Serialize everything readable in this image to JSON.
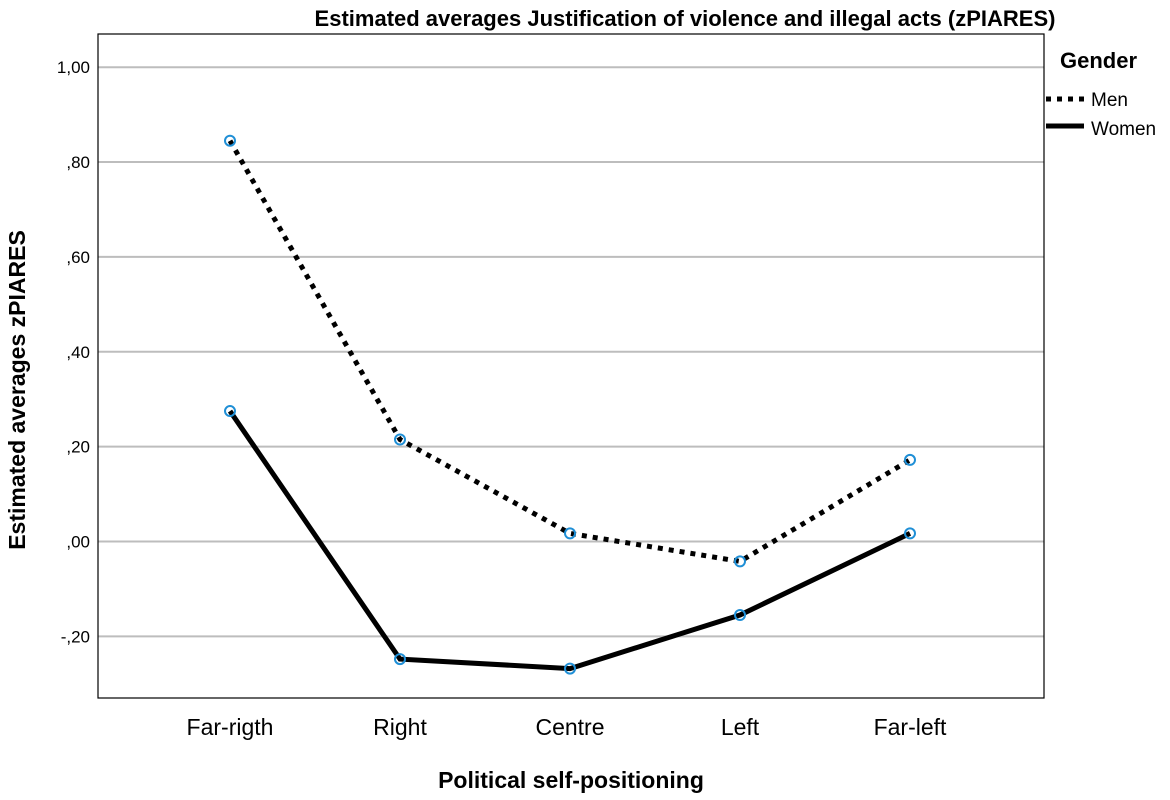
{
  "chart_data": {
    "type": "line",
    "title": "Estimated averages Justification of violence and illegal acts (zPIARES)",
    "xlabel": "Political self-positioning",
    "ylabel": "Estimated averages zPIARES",
    "categories": [
      "Far-rigth",
      "Right",
      "Centre",
      "Left",
      "Far-left"
    ],
    "ylim": [
      -0.33,
      1.07
    ],
    "yticks": [
      1.0,
      0.8,
      0.6,
      0.4,
      0.2,
      0.0,
      -0.2
    ],
    "ytick_labels": [
      "1,00",
      ",80",
      ",60",
      ",40",
      ",20",
      ",00",
      "-,20"
    ],
    "grid": true,
    "legend_title": "Gender",
    "legend_position": "top-right",
    "series": [
      {
        "name": "Men",
        "style": "dotted",
        "values": [
          0.845,
          0.215,
          0.017,
          -0.042,
          0.172
        ]
      },
      {
        "name": "Women",
        "style": "solid",
        "values": [
          0.275,
          -0.248,
          -0.268,
          -0.155,
          0.017
        ]
      }
    ]
  },
  "colors": {
    "line": "#000000",
    "marker": "#1f8fd6",
    "grid": "#bdbdbd"
  }
}
